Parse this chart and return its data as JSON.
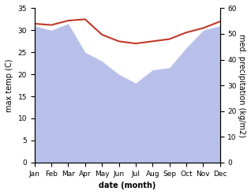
{
  "months": [
    "Jan",
    "Feb",
    "Mar",
    "Apr",
    "May",
    "Jun",
    "Jul",
    "Aug",
    "Sep",
    "Oct",
    "Nov",
    "Dec"
  ],
  "temperature": [
    31.5,
    31.2,
    32.2,
    32.5,
    29.0,
    27.5,
    27.0,
    27.5,
    28.0,
    29.5,
    30.5,
    32.0
  ],
  "precipitation_left_scale": [
    31.0,
    30.0,
    31.5,
    25.0,
    23.0,
    20.0,
    18.0,
    21.0,
    21.5,
    26.0,
    30.0,
    31.0
  ],
  "temp_color": "#c0392b",
  "precip_fill_color": "#b8c0ea",
  "temp_ylim": [
    0,
    35
  ],
  "precip_ylim": [
    0,
    60
  ],
  "temp_yticks": [
    0,
    5,
    10,
    15,
    20,
    25,
    30,
    35
  ],
  "precip_yticks": [
    0,
    10,
    20,
    30,
    40,
    50,
    60
  ],
  "ylabel_left": "max temp (C)",
  "ylabel_right": "med. precipitation (kg/m2)",
  "xlabel": "date (month)",
  "background_color": "#ffffff"
}
